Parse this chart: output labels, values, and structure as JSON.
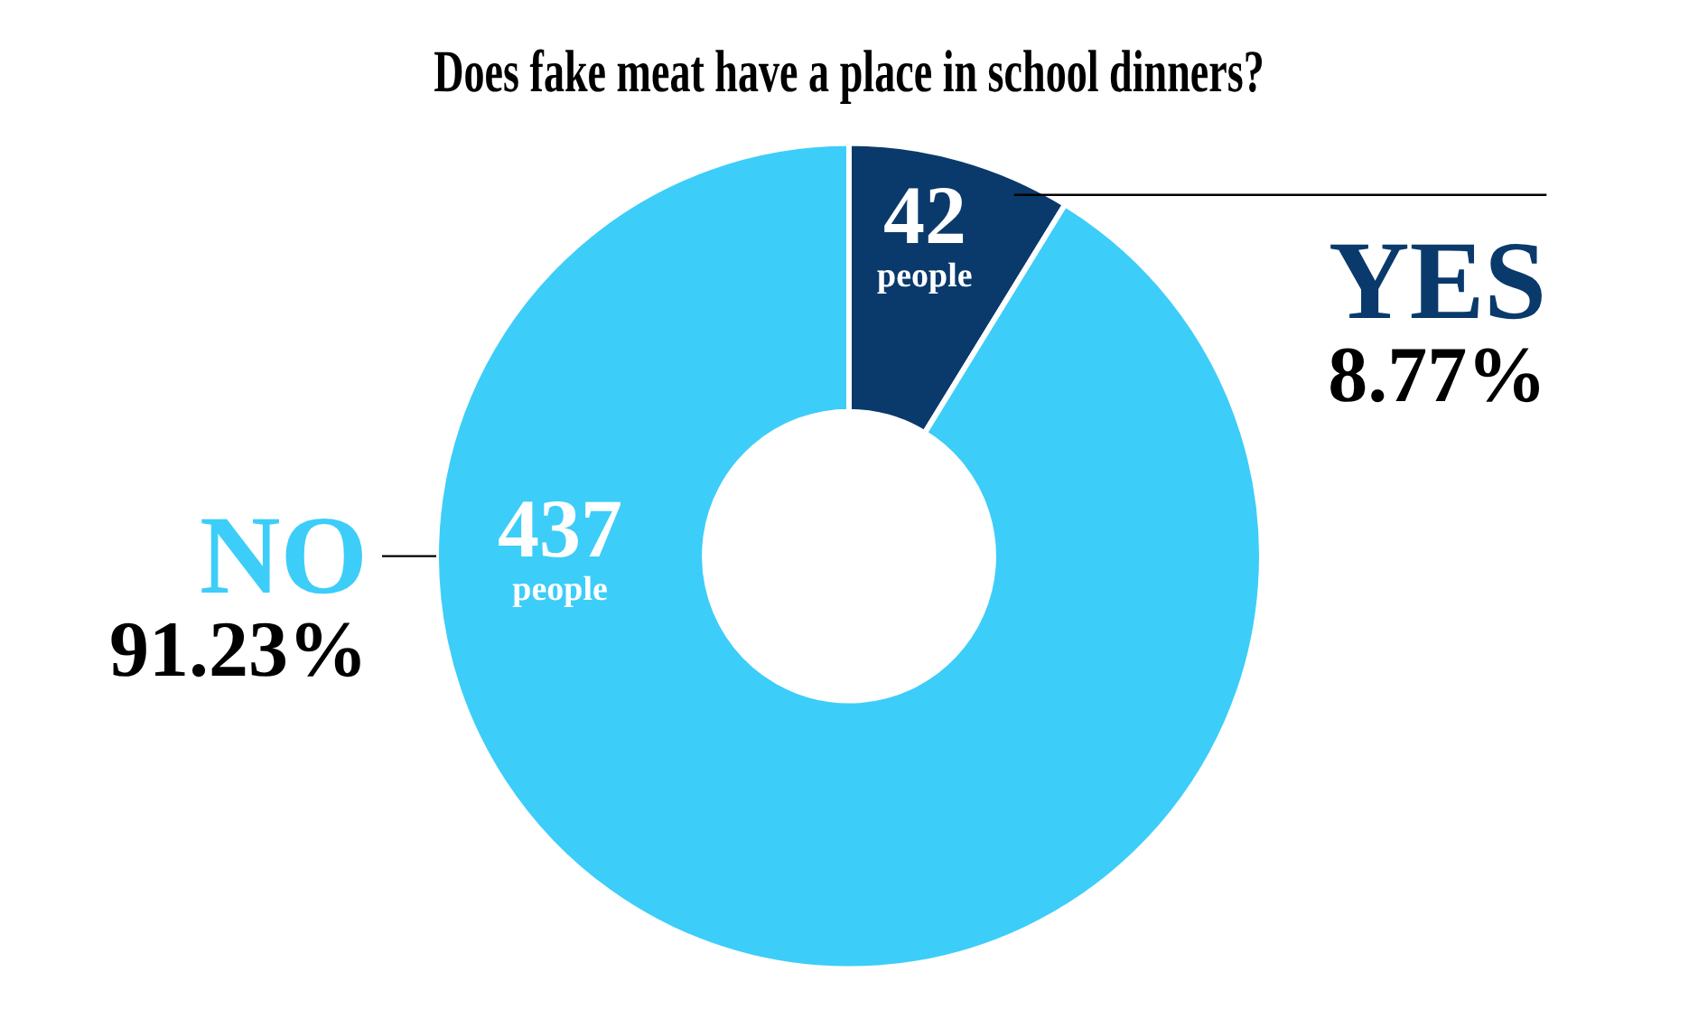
{
  "chart_data": {
    "type": "donut",
    "title": "Does fake meat have a place in school dinners?",
    "categories": [
      "YES",
      "NO"
    ],
    "values": [
      42,
      437
    ],
    "colors": [
      "#0a3a6b",
      "#3dcdf9"
    ],
    "value_labels": [
      "42 people",
      "437 people"
    ],
    "annotations": [
      "8.77%",
      "91.23%"
    ],
    "legend": false
  }
}
